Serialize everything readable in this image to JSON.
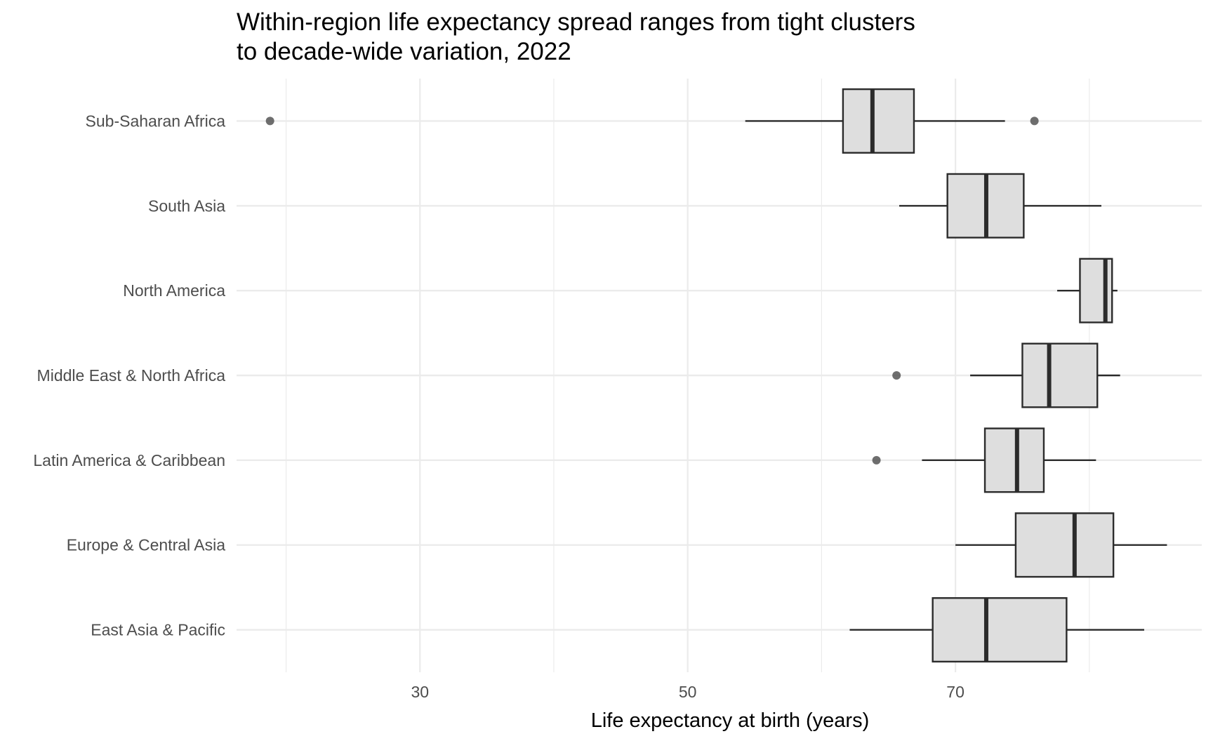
{
  "chart_data": {
    "type": "boxplot",
    "title_lines": [
      "Within-region life expectancy spread ranges from tight clusters",
      "to decade-wide variation, 2022"
    ],
    "xlabel": "Life expectancy at birth (years)",
    "ylabel": "",
    "xlim": [
      16.3,
      88.4
    ],
    "x_ticks": [
      30,
      50,
      70
    ],
    "x_minor_ticks": [
      20,
      40,
      60,
      80
    ],
    "grid": true,
    "legend": "none",
    "colors": {
      "box_fill": "#dedede",
      "box_stroke": "#2b2b2b",
      "grid": "#ebebeb",
      "outlier": "#555555"
    },
    "categories": [
      "Sub-Saharan Africa",
      "South Asia",
      "North America",
      "Middle East & North Africa",
      "Latin America & Caribbean",
      "Europe & Central Asia",
      "East Asia & Pacific"
    ],
    "boxes": [
      {
        "category": "Sub-Saharan Africa",
        "whisker_low": 54.3,
        "q1": 61.6,
        "median": 63.8,
        "q3": 66.9,
        "whisker_high": 73.7,
        "outliers": [
          18.8,
          75.9
        ]
      },
      {
        "category": "South Asia",
        "whisker_low": 65.8,
        "q1": 69.4,
        "median": 72.3,
        "q3": 75.1,
        "whisker_high": 80.9,
        "outliers": []
      },
      {
        "category": "North America",
        "whisker_low": 77.6,
        "q1": 79.3,
        "median": 81.2,
        "q3": 81.7,
        "whisker_high": 82.1,
        "outliers": []
      },
      {
        "category": "Middle East & North Africa",
        "whisker_low": 71.1,
        "q1": 75.0,
        "median": 77.0,
        "q3": 80.6,
        "whisker_high": 82.3,
        "outliers": [
          65.6
        ]
      },
      {
        "category": "Latin America & Caribbean",
        "whisker_low": 67.5,
        "q1": 72.2,
        "median": 74.6,
        "q3": 76.6,
        "whisker_high": 80.5,
        "outliers": [
          64.1
        ]
      },
      {
        "category": "Europe & Central Asia",
        "whisker_low": 70.0,
        "q1": 74.5,
        "median": 78.9,
        "q3": 81.8,
        "whisker_high": 85.8,
        "outliers": []
      },
      {
        "category": "East Asia & Pacific",
        "whisker_low": 62.1,
        "q1": 68.3,
        "median": 72.3,
        "q3": 78.3,
        "whisker_high": 84.1,
        "outliers": []
      }
    ]
  }
}
